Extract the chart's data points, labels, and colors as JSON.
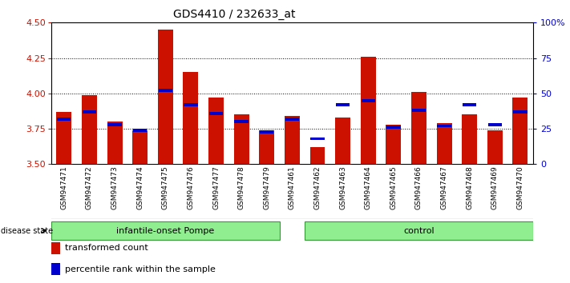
{
  "title": "GDS4410 / 232633_at",
  "samples": [
    "GSM947471",
    "GSM947472",
    "GSM947473",
    "GSM947474",
    "GSM947475",
    "GSM947476",
    "GSM947477",
    "GSM947478",
    "GSM947479",
    "GSM947461",
    "GSM947462",
    "GSM947463",
    "GSM947464",
    "GSM947465",
    "GSM947466",
    "GSM947467",
    "GSM947468",
    "GSM947469",
    "GSM947470"
  ],
  "transformed_count": [
    3.87,
    3.99,
    3.8,
    3.74,
    4.45,
    4.15,
    3.97,
    3.85,
    3.74,
    3.84,
    3.62,
    3.83,
    4.26,
    3.78,
    4.01,
    3.79,
    3.85,
    3.74,
    3.97
  ],
  "percentile_rank": [
    32,
    37,
    28,
    24,
    52,
    42,
    36,
    30,
    23,
    32,
    18,
    42,
    45,
    26,
    38,
    27,
    42,
    28,
    37
  ],
  "group_labels": [
    "infantile-onset Pompe",
    "control"
  ],
  "bar_color": "#CC1100",
  "blue_color": "#0000CC",
  "ylim_left": [
    3.5,
    4.5
  ],
  "ylim_right": [
    0,
    100
  ],
  "yticks_left": [
    3.5,
    3.75,
    4.0,
    4.25,
    4.5
  ],
  "yticks_right": [
    0,
    25,
    50,
    75,
    100
  ],
  "title_fontsize": 10,
  "tick_fontsize": 6.5,
  "axis_tick_fontsize": 8
}
